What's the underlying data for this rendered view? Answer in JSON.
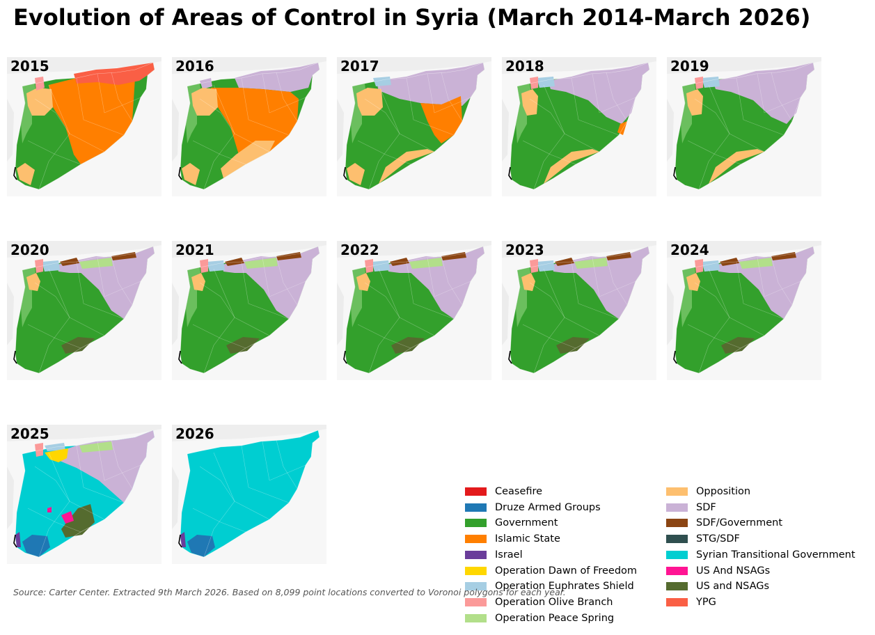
{
  "title": "Evolution of Areas of Control in Syria (March 2014-March 2026)",
  "source": "Source: Carter Center. Extracted 9th March 2026. Based on 8,099 point locations converted to Voronoi polygons for each year.",
  "colors": {
    "Ceasefire": "#e31a1c",
    "Druze Armed Groups": "#1f78b4",
    "Government": "#33a02c",
    "Islamic State": "#ff7f00",
    "Israel": "#6a3d9a",
    "Operation Dawn of Freedom": "#ffd700",
    "Operation Euphrates Shield": "#a6cee3",
    "Operation Olive Branch": "#fb9a99",
    "Operation Peace Spring": "#b2df8a",
    "Opposition": "#fdbf6f",
    "SDF": "#cab2d6",
    "SDF/Government": "#8b4513",
    "STG/SDF": "#2f4f4f",
    "Syrian Transitional Government": "#00ced1",
    "US And NSAGs": "#ff1493",
    "US and NSAGs": "#556b2f",
    "YPG": "#fa5f45"
  },
  "panels": [
    {
      "year": "2015",
      "zones": [
        "Government",
        "Islamic State",
        "YPG",
        "Opposition",
        "Operation Olive Branch"
      ]
    },
    {
      "year": "2016",
      "zones": [
        "Government",
        "Islamic State",
        "SDF",
        "Opposition"
      ]
    },
    {
      "year": "2017",
      "zones": [
        "Government",
        "Islamic State",
        "SDF",
        "Opposition",
        "Operation Euphrates Shield"
      ]
    },
    {
      "year": "2018",
      "zones": [
        "Government",
        "SDF",
        "Opposition",
        "Operation Euphrates Shield",
        "Operation Olive Branch",
        "Islamic State"
      ]
    },
    {
      "year": "2019",
      "zones": [
        "Government",
        "SDF",
        "Opposition",
        "Operation Euphrates Shield",
        "Operation Olive Branch"
      ]
    },
    {
      "year": "2020",
      "zones": [
        "Government",
        "SDF",
        "Opposition",
        "Operation Euphrates Shield",
        "Operation Olive Branch",
        "Operation Peace Spring",
        "SDF/Government",
        "US and NSAGs"
      ]
    },
    {
      "year": "2021",
      "zones": [
        "Government",
        "SDF",
        "Opposition",
        "Operation Euphrates Shield",
        "Operation Olive Branch",
        "Operation Peace Spring",
        "SDF/Government",
        "US and NSAGs"
      ]
    },
    {
      "year": "2022",
      "zones": [
        "Government",
        "SDF",
        "Opposition",
        "Operation Euphrates Shield",
        "Operation Olive Branch",
        "Operation Peace Spring",
        "SDF/Government",
        "US and NSAGs"
      ]
    },
    {
      "year": "2023",
      "zones": [
        "Government",
        "SDF",
        "Opposition",
        "Operation Euphrates Shield",
        "Operation Olive Branch",
        "Operation Peace Spring",
        "SDF/Government",
        "US and NSAGs"
      ]
    },
    {
      "year": "2024",
      "zones": [
        "Government",
        "SDF",
        "Opposition",
        "Operation Euphrates Shield",
        "Operation Olive Branch",
        "Operation Peace Spring",
        "SDF/Government",
        "US and NSAGs"
      ]
    },
    {
      "year": "2025",
      "zones": [
        "Syrian Transitional Government",
        "SDF",
        "Operation Dawn of Freedom",
        "Operation Euphrates Shield",
        "Operation Olive Branch",
        "Operation Peace Spring",
        "US and NSAGs",
        "US And NSAGs",
        "Druze Armed Groups",
        "Israel"
      ]
    },
    {
      "year": "2026",
      "zones": [
        "Syrian Transitional Government",
        "Druze Armed Groups",
        "Israel"
      ]
    }
  ],
  "legend": [
    "Ceasefire",
    "Druze Armed Groups",
    "Government",
    "Islamic State",
    "Israel",
    "Operation Dawn of Freedom",
    "Operation Euphrates Shield",
    "Operation Olive Branch",
    "Operation Peace Spring",
    "Opposition",
    "SDF",
    "SDF/Government",
    "STG/SDF",
    "Syrian Transitional Government",
    "US And NSAGs",
    "US and NSAGs",
    "YPG"
  ]
}
